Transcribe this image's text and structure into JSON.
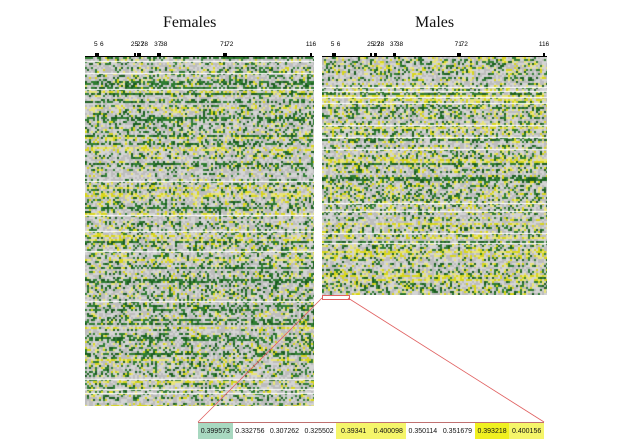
{
  "panels": {
    "females": {
      "title": "Females"
    },
    "males": {
      "title": "Males"
    }
  },
  "ruler_ticks": [
    "5",
    "6",
    "25",
    "27",
    "28",
    "37",
    "38",
    "71",
    "72",
    "116"
  ],
  "ruler_tick_positions": [
    5,
    6,
    25,
    27,
    28,
    37,
    38,
    71,
    72,
    116
  ],
  "ruler_max": 116,
  "heatmap_colors": {
    "gray": "#bdbdbd",
    "light_gray": "#d4d4d4",
    "green": "#2f7d32",
    "dark_green": "#1b5e20",
    "yellow": "#d8d61c",
    "pale_yellow": "#e9e57a"
  },
  "zoom_color": "#e06060",
  "zoom_values": [
    {
      "text": "0.399573",
      "color": "#a8d8c0"
    },
    {
      "text": "0.332756",
      "color": "#ffffff"
    },
    {
      "text": "0.307262",
      "color": "#ffffff"
    },
    {
      "text": "0.325502",
      "color": "#ffffff"
    },
    {
      "text": "0.39341",
      "color": "#f5f56a"
    },
    {
      "text": "0.400098",
      "color": "#f5f56a"
    },
    {
      "text": "0.350114",
      "color": "#ffffff"
    },
    {
      "text": "0.351679",
      "color": "#ffffff"
    },
    {
      "text": "0.393218",
      "color": "#f0f020"
    },
    {
      "text": "0.400156",
      "color": "#f5f56a"
    }
  ]
}
